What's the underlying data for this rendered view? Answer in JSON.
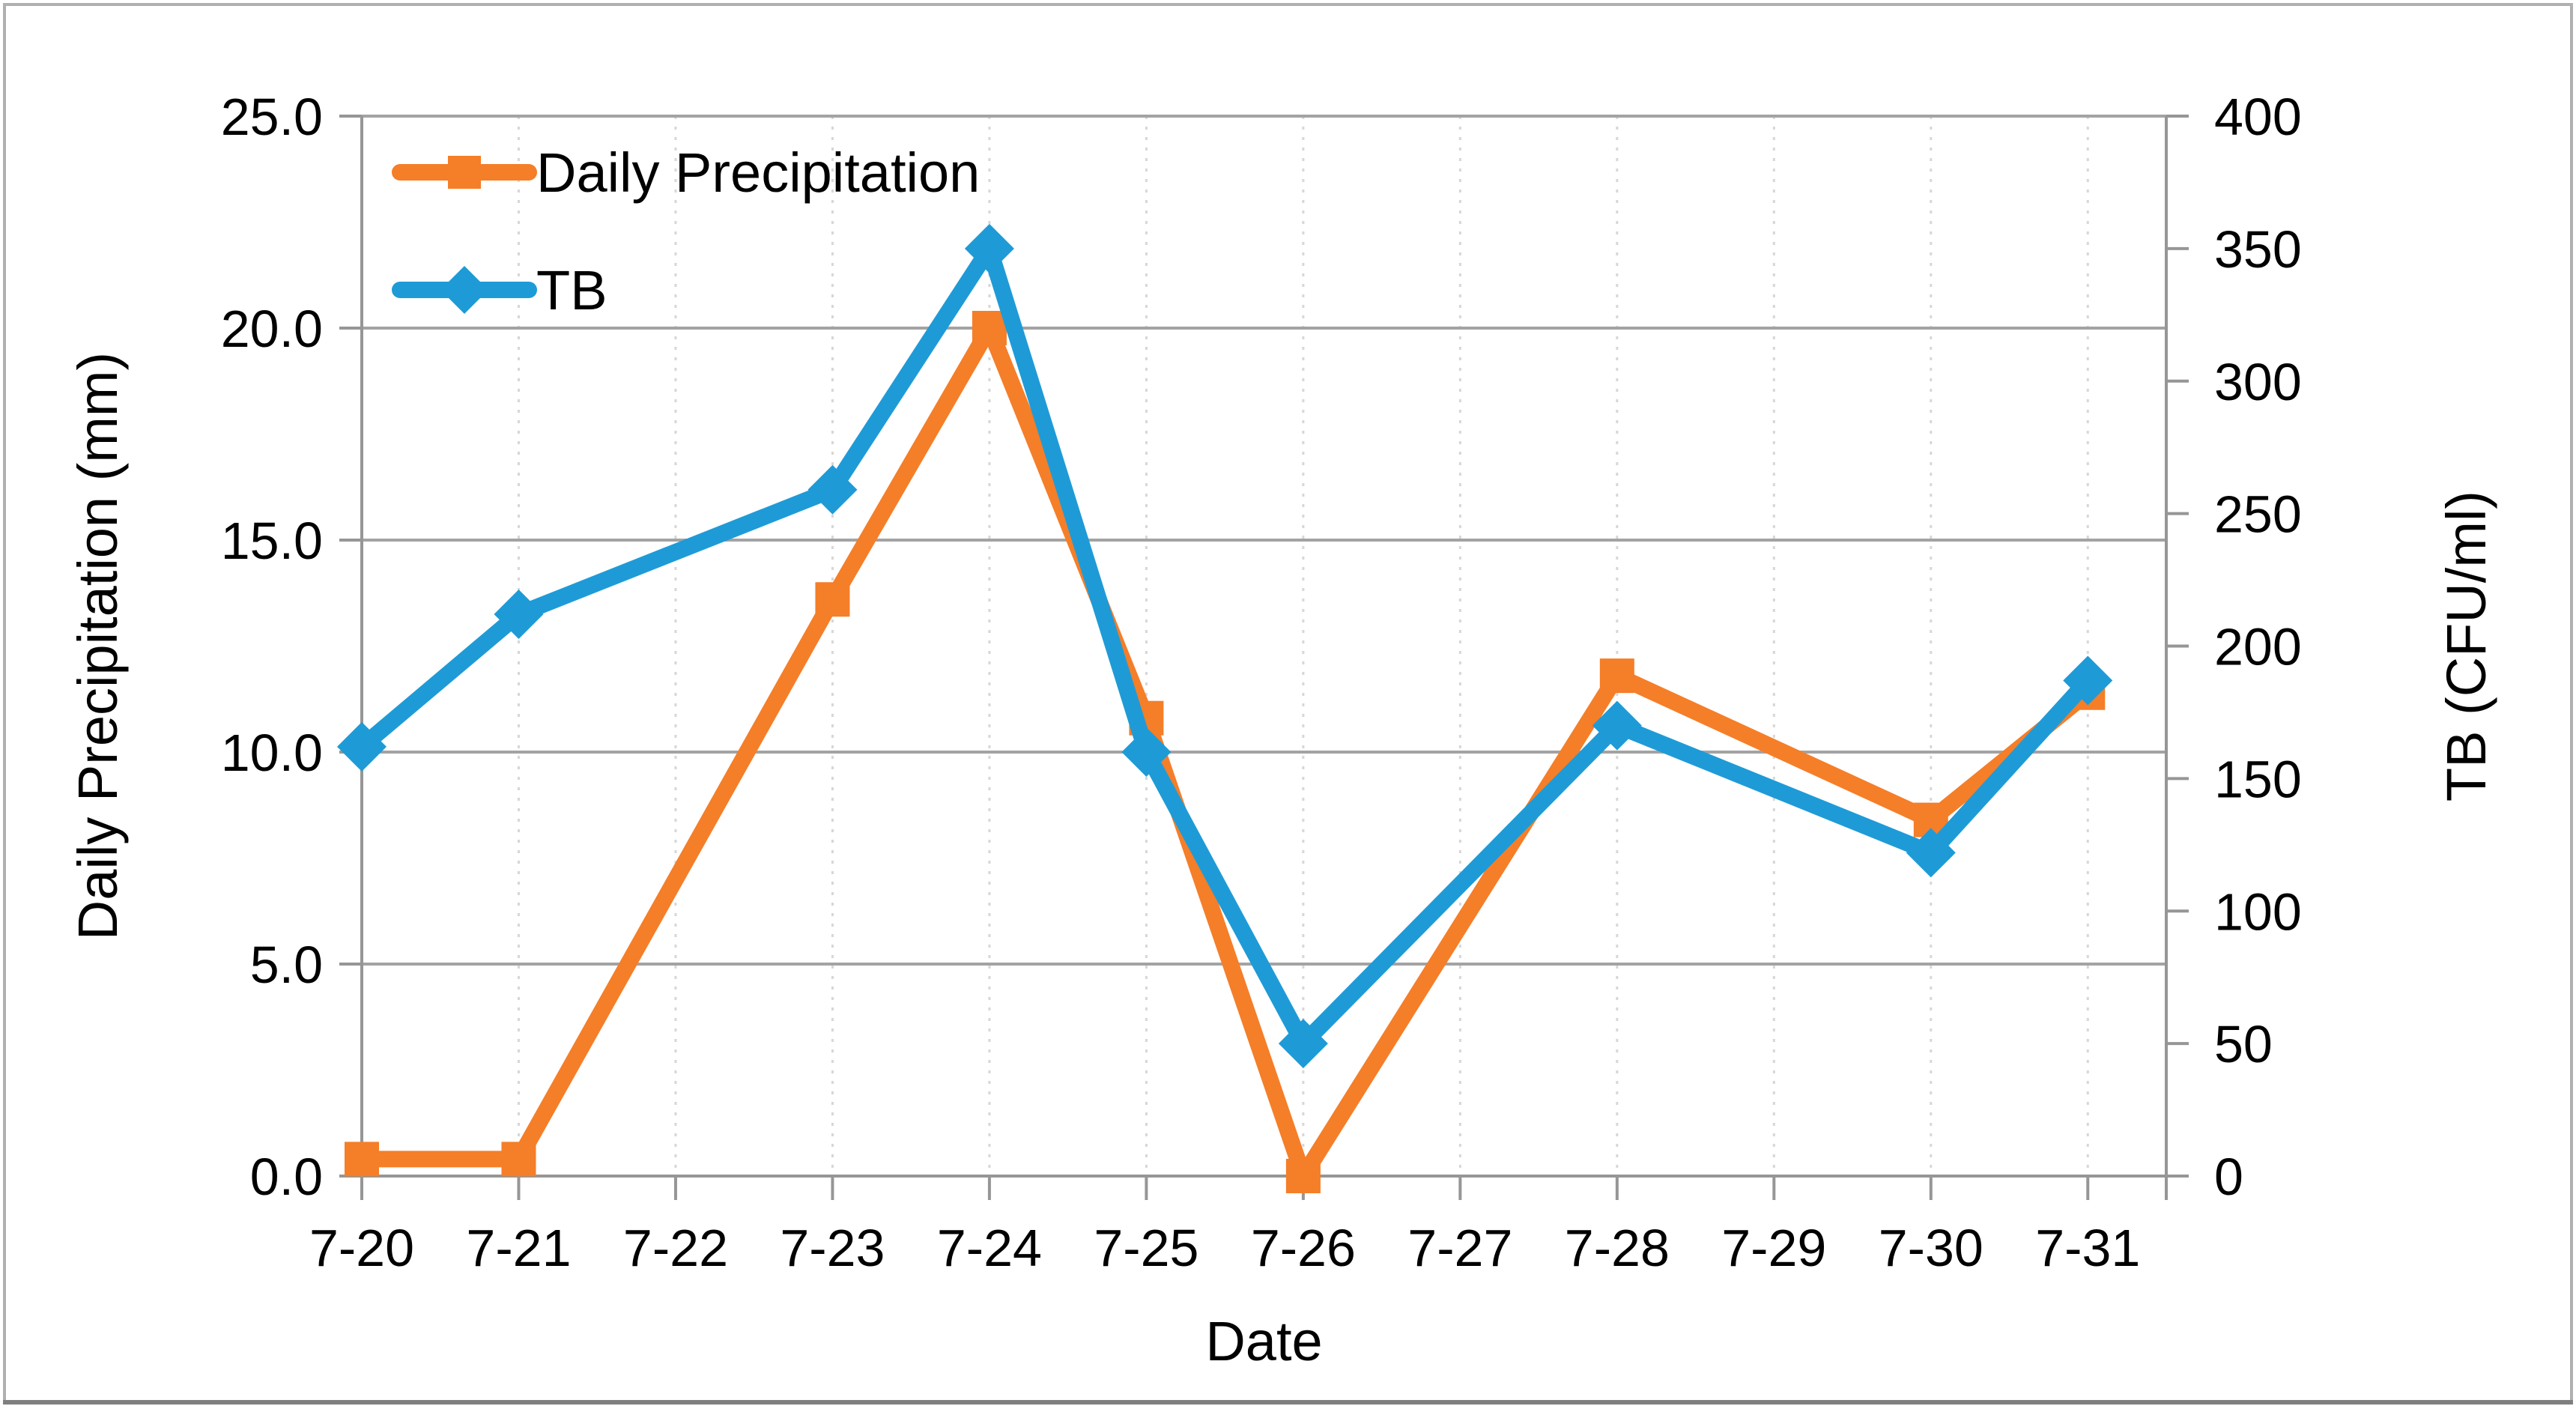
{
  "window": {
    "background": "#FFFFFF",
    "border_color": "#B0B0B0",
    "bottom_edge_color": "#7F7F7F"
  },
  "chart_data": {
    "type": "line",
    "title": "",
    "categories": [
      "7-20",
      "7-21",
      "7-22",
      "7-23",
      "7-24",
      "7-25",
      "7-26",
      "7-27",
      "7-28",
      "7-29",
      "7-30",
      "7-31"
    ],
    "xlabel": "Date",
    "y_left": {
      "title": "Daily Precipitation (mm)",
      "min": 0,
      "max": 25,
      "step": 5,
      "ticks": [
        "25.0",
        "20.0",
        "15.0",
        "10.0",
        "5.0",
        "0.0"
      ]
    },
    "y_right": {
      "title": "TB (CFU/ml)",
      "min": 0,
      "max": 400,
      "step": 50,
      "ticks": [
        "400",
        "350",
        "300",
        "250",
        "200",
        "150",
        "100",
        "50",
        "0"
      ]
    },
    "series": [
      {
        "name": "Daily Precipitation",
        "axis": "left",
        "marker": "square",
        "color": "#F57E28",
        "values": [
          0.4,
          0.4,
          null,
          13.6,
          20.0,
          10.8,
          0.0,
          null,
          11.8,
          null,
          8.4,
          11.4
        ]
      },
      {
        "name": "TB",
        "axis": "right",
        "marker": "diamond",
        "color": "#1E9BD7",
        "values": [
          162,
          212,
          null,
          259,
          350,
          160,
          50,
          null,
          170,
          null,
          122,
          187
        ]
      }
    ],
    "legend": {
      "position": "top-left-inside",
      "entries": [
        "Daily Precipitation",
        "TB"
      ]
    },
    "grid": {
      "horizontal": "solid",
      "vertical": "dotted"
    },
    "styles": {
      "grid_color": "#A3A3A3",
      "axis_color": "#969696",
      "dotted_color": "#D8D6D6",
      "text_color": "#000000"
    }
  }
}
